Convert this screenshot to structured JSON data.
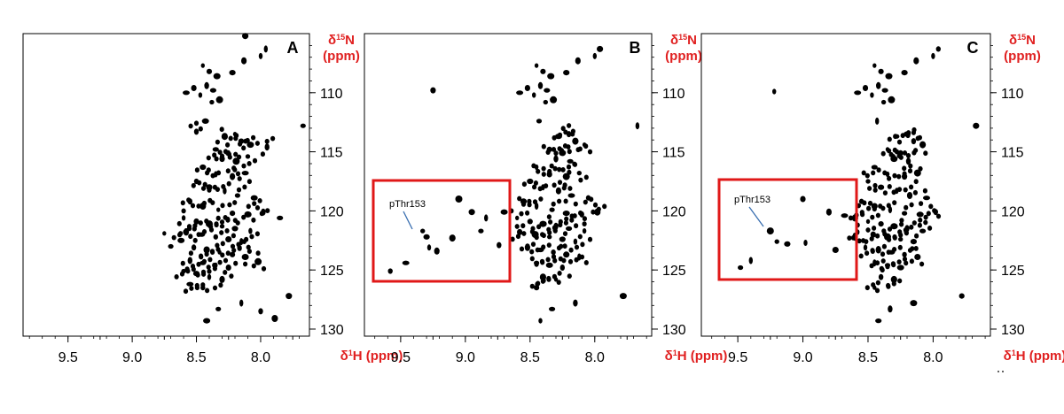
{
  "chart_data": [
    {
      "type": "scatter",
      "panel_label": "A",
      "xlabel": "δ¹H (ppm)",
      "ylabel": "δ¹⁵N (ppm)",
      "xlim": [
        9.85,
        7.62
      ],
      "ylim": [
        105.0,
        130.6
      ],
      "x_reversed": true,
      "y_reversed": true,
      "x_ticks": [
        "9.5",
        "9.0",
        "8.5",
        "8.0"
      ],
      "y_ticks": [
        "110",
        "115",
        "120",
        "125",
        "130"
      ],
      "series": [
        {
          "values": [
            [
              8.45,
              107.7
            ],
            [
              8.4,
              108.2
            ],
            [
              8.34,
              108.6
            ],
            [
              8.42,
              109.4
            ],
            [
              8.37,
              109.8
            ],
            [
              8.47,
              110.2
            ],
            [
              8.52,
              109.6
            ],
            [
              8.32,
              110.6
            ],
            [
              8.38,
              110.8
            ],
            [
              8.22,
              108.3
            ],
            [
              8.0,
              106.9
            ],
            [
              8.13,
              107.3
            ],
            [
              8.58,
              110.0
            ],
            [
              8.05,
              104.5
            ],
            [
              8.12,
              105.2
            ],
            [
              7.96,
              106.3
            ],
            [
              7.67,
              112.8
            ],
            [
              8.43,
              112.4
            ],
            [
              8.5,
              113.3
            ],
            [
              8.28,
              113.7
            ],
            [
              8.2,
              113.5
            ],
            [
              8.15,
              114.1
            ],
            [
              8.08,
              114.4
            ],
            [
              7.95,
              114.6
            ],
            [
              8.35,
              114.8
            ],
            [
              8.25,
              115.1
            ],
            [
              8.3,
              115.6
            ],
            [
              8.19,
              115.8
            ],
            [
              8.1,
              115.4
            ],
            [
              8.45,
              116.3
            ],
            [
              8.35,
              116.9
            ],
            [
              8.22,
              117.1
            ],
            [
              8.12,
              116.8
            ],
            [
              8.5,
              117.5
            ],
            [
              8.4,
              118.0
            ],
            [
              8.28,
              118.3
            ],
            [
              8.18,
              118.7
            ],
            [
              8.05,
              118.9
            ],
            [
              8.55,
              119.2
            ],
            [
              8.45,
              119.6
            ],
            [
              8.33,
              119.9
            ],
            [
              8.22,
              120.2
            ],
            [
              8.1,
              120.3
            ],
            [
              7.98,
              120.1
            ],
            [
              7.85,
              120.6
            ],
            [
              8.6,
              120.6
            ],
            [
              8.5,
              120.9
            ],
            [
              8.4,
              121.1
            ],
            [
              8.3,
              121.3
            ],
            [
              8.2,
              121.5
            ],
            [
              8.08,
              121.7
            ],
            [
              8.58,
              121.8
            ],
            [
              8.46,
              122.0
            ],
            [
              8.35,
              122.2
            ],
            [
              8.25,
              122.4
            ],
            [
              8.15,
              122.6
            ],
            [
              8.7,
              123.0
            ],
            [
              8.62,
              122.5
            ],
            [
              8.52,
              123.1
            ],
            [
              8.42,
              123.3
            ],
            [
              8.32,
              123.5
            ],
            [
              8.22,
              123.7
            ],
            [
              8.12,
              123.9
            ],
            [
              8.55,
              124.2
            ],
            [
              8.45,
              124.4
            ],
            [
              8.35,
              124.6
            ],
            [
              8.25,
              124.8
            ],
            [
              8.02,
              124.3
            ],
            [
              8.6,
              125.1
            ],
            [
              8.5,
              125.3
            ],
            [
              8.4,
              125.6
            ],
            [
              8.3,
              125.8
            ],
            [
              8.55,
              126.2
            ],
            [
              8.45,
              126.5
            ],
            [
              7.78,
              127.2
            ],
            [
              8.15,
              127.8
            ],
            [
              8.33,
              128.3
            ],
            [
              8.42,
              129.3
            ],
            [
              8.0,
              128.5
            ],
            [
              7.89,
              129.1
            ],
            [
              8.75,
              121.9
            ]
          ]
        }
      ]
    },
    {
      "type": "scatter",
      "panel_label": "B",
      "xlabel": "δ¹H (ppm)",
      "ylabel": "δ¹⁵N (ppm)",
      "xlim": [
        9.78,
        7.56
      ],
      "ylim": [
        105.0,
        130.6
      ],
      "x_reversed": true,
      "y_reversed": true,
      "x_ticks": [
        "9.5",
        "9.0",
        "8.5",
        "8.0"
      ],
      "y_ticks": [
        "110",
        "115",
        "120",
        "125",
        "130"
      ],
      "annotation": "pThr153",
      "series": [
        {
          "values": [
            [
              8.45,
              107.7
            ],
            [
              8.4,
              108.2
            ],
            [
              8.34,
              108.6
            ],
            [
              8.42,
              109.4
            ],
            [
              8.37,
              109.8
            ],
            [
              8.47,
              110.2
            ],
            [
              8.52,
              109.6
            ],
            [
              8.32,
              110.6
            ],
            [
              8.38,
              110.8
            ],
            [
              8.22,
              108.3
            ],
            [
              8.0,
              106.9
            ],
            [
              8.13,
              107.3
            ],
            [
              8.58,
              110.0
            ],
            [
              8.05,
              104.5
            ],
            [
              7.96,
              106.3
            ],
            [
              7.67,
              112.8
            ],
            [
              8.43,
              112.4
            ],
            [
              8.28,
              113.7
            ],
            [
              8.2,
              113.5
            ],
            [
              8.15,
              114.1
            ],
            [
              8.08,
              114.4
            ],
            [
              8.35,
              114.8
            ],
            [
              8.25,
              115.1
            ],
            [
              8.3,
              115.6
            ],
            [
              8.19,
              115.8
            ],
            [
              8.45,
              116.3
            ],
            [
              8.35,
              116.9
            ],
            [
              8.22,
              117.1
            ],
            [
              8.12,
              116.8
            ],
            [
              8.5,
              117.5
            ],
            [
              8.4,
              118.0
            ],
            [
              8.28,
              118.3
            ],
            [
              8.18,
              118.7
            ],
            [
              8.05,
              118.9
            ],
            [
              8.55,
              119.2
            ],
            [
              8.45,
              119.6
            ],
            [
              8.33,
              119.9
            ],
            [
              8.22,
              120.2
            ],
            [
              8.1,
              120.3
            ],
            [
              7.98,
              120.1
            ],
            [
              8.6,
              120.6
            ],
            [
              8.5,
              120.9
            ],
            [
              8.4,
              121.1
            ],
            [
              8.3,
              121.3
            ],
            [
              8.2,
              121.5
            ],
            [
              8.08,
              121.7
            ],
            [
              8.58,
              121.8
            ],
            [
              8.46,
              122.0
            ],
            [
              8.35,
              122.2
            ],
            [
              8.25,
              122.4
            ],
            [
              8.15,
              122.6
            ],
            [
              8.52,
              123.1
            ],
            [
              8.42,
              123.3
            ],
            [
              8.32,
              123.5
            ],
            [
              8.22,
              123.7
            ],
            [
              8.12,
              123.9
            ],
            [
              8.45,
              124.4
            ],
            [
              8.35,
              124.6
            ],
            [
              8.25,
              124.8
            ],
            [
              8.4,
              125.6
            ],
            [
              8.3,
              125.8
            ],
            [
              8.45,
              126.5
            ],
            [
              7.78,
              127.2
            ],
            [
              8.15,
              127.8
            ],
            [
              8.33,
              128.3
            ],
            [
              8.42,
              129.3
            ],
            [
              9.25,
              109.8
            ],
            [
              9.05,
              119.0
            ],
            [
              9.33,
              121.7
            ],
            [
              9.3,
              122.2
            ],
            [
              9.28,
              123.1
            ],
            [
              9.22,
              123.4
            ],
            [
              9.46,
              124.4
            ],
            [
              9.58,
              125.1
            ],
            [
              8.95,
              120.1
            ],
            [
              8.84,
              120.6
            ],
            [
              8.88,
              121.7
            ],
            [
              8.7,
              120.1
            ],
            [
              8.74,
              122.9
            ],
            [
              9.1,
              122.3
            ]
          ]
        }
      ]
    },
    {
      "type": "scatter",
      "panel_label": "C",
      "xlabel": "δ¹H (ppm)",
      "ylabel": "δ¹⁵N (ppm)",
      "xlim": [
        9.78,
        7.56
      ],
      "ylim": [
        105.0,
        130.6
      ],
      "x_reversed": true,
      "y_reversed": true,
      "x_ticks": [
        "9.5",
        "9.0",
        "8.5",
        "8.0"
      ],
      "y_ticks": [
        "110",
        "115",
        "120",
        "125",
        "130"
      ],
      "annotation": "pThr153",
      "series": [
        {
          "values": [
            [
              8.45,
              107.7
            ],
            [
              8.4,
              108.2
            ],
            [
              8.34,
              108.6
            ],
            [
              8.42,
              109.4
            ],
            [
              8.37,
              109.8
            ],
            [
              8.47,
              110.2
            ],
            [
              8.52,
              109.6
            ],
            [
              8.32,
              110.6
            ],
            [
              8.38,
              110.8
            ],
            [
              8.22,
              108.3
            ],
            [
              8.0,
              106.9
            ],
            [
              8.13,
              107.3
            ],
            [
              8.58,
              110.0
            ],
            [
              7.96,
              106.3
            ],
            [
              7.67,
              112.8
            ],
            [
              8.43,
              112.4
            ],
            [
              8.28,
              113.7
            ],
            [
              8.2,
              113.5
            ],
            [
              8.15,
              114.1
            ],
            [
              8.08,
              114.4
            ],
            [
              8.35,
              114.8
            ],
            [
              8.25,
              115.1
            ],
            [
              8.3,
              115.6
            ],
            [
              8.19,
              115.8
            ],
            [
              8.45,
              116.3
            ],
            [
              8.35,
              116.9
            ],
            [
              8.22,
              117.1
            ],
            [
              8.12,
              116.8
            ],
            [
              8.5,
              117.5
            ],
            [
              8.4,
              118.0
            ],
            [
              8.28,
              118.3
            ],
            [
              8.18,
              118.7
            ],
            [
              8.05,
              118.9
            ],
            [
              8.55,
              119.2
            ],
            [
              8.45,
              119.6
            ],
            [
              8.33,
              119.9
            ],
            [
              8.22,
              120.2
            ],
            [
              8.1,
              120.3
            ],
            [
              7.98,
              120.1
            ],
            [
              8.6,
              120.6
            ],
            [
              8.5,
              120.9
            ],
            [
              8.4,
              121.1
            ],
            [
              8.3,
              121.3
            ],
            [
              8.2,
              121.5
            ],
            [
              8.08,
              121.7
            ],
            [
              8.58,
              121.8
            ],
            [
              8.46,
              122.0
            ],
            [
              8.35,
              122.2
            ],
            [
              8.25,
              122.4
            ],
            [
              8.15,
              122.6
            ],
            [
              8.52,
              123.1
            ],
            [
              8.42,
              123.3
            ],
            [
              8.32,
              123.5
            ],
            [
              8.22,
              123.7
            ],
            [
              8.12,
              123.9
            ],
            [
              8.45,
              124.4
            ],
            [
              8.35,
              124.6
            ],
            [
              8.25,
              124.8
            ],
            [
              8.4,
              125.6
            ],
            [
              8.3,
              125.8
            ],
            [
              8.45,
              126.5
            ],
            [
              7.78,
              127.2
            ],
            [
              8.15,
              127.8
            ],
            [
              8.33,
              128.3
            ],
            [
              8.42,
              129.3
            ],
            [
              9.22,
              109.9
            ],
            [
              9.0,
              119.0
            ],
            [
              9.25,
              121.7
            ],
            [
              9.2,
              122.6
            ],
            [
              9.12,
              122.8
            ],
            [
              8.98,
              122.7
            ],
            [
              8.8,
              120.1
            ],
            [
              8.68,
              120.4
            ],
            [
              8.6,
              122.3
            ],
            [
              8.75,
              123.3
            ],
            [
              9.4,
              124.2
            ],
            [
              9.48,
              124.8
            ]
          ]
        }
      ]
    }
  ]
}
